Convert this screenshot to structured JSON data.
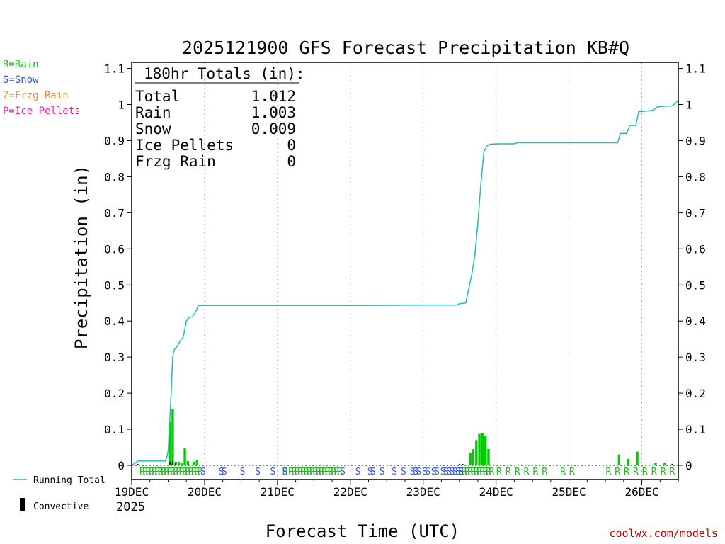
{
  "chart_data": {
    "type": "bar+line",
    "title": "2025121900 GFS Forecast Precipitation KB#Q",
    "xlabel": "Forecast Time (UTC)",
    "ylabel": "Precipitation (in)",
    "ylim": [
      0,
      1.12
    ],
    "xlim_hours": [
      0,
      180
    ],
    "y_ticks": [
      "0",
      "0.1",
      "0.2",
      "0.3",
      "0.4",
      "0.5",
      "0.6",
      "0.7",
      "0.8",
      "0.9",
      "1",
      "1.1"
    ],
    "x_ticks": [
      {
        "label": "19DEC",
        "hour": 0
      },
      {
        "label": "20DEC",
        "hour": 24
      },
      {
        "label": "21DEC",
        "hour": 48
      },
      {
        "label": "22DEC",
        "hour": 72
      },
      {
        "label": "23DEC",
        "hour": 96
      },
      {
        "label": "24DEC",
        "hour": 120
      },
      {
        "label": "25DEC",
        "hour": 144
      },
      {
        "label": "26DEC",
        "hour": 168
      }
    ],
    "start_year": "2025",
    "totals": {
      "header": "180hr Totals (in):",
      "rows": [
        {
          "label": "Total",
          "value": "1.012"
        },
        {
          "label": "Rain",
          "value": "1.003"
        },
        {
          "label": "Snow",
          "value": "0.009"
        },
        {
          "label": "Ice Pellets",
          "value": "0"
        },
        {
          "label": "Frzg Rain",
          "value": "0"
        }
      ]
    },
    "ptype_legend": [
      {
        "text": "R=Rain",
        "color": "#22bb22"
      },
      {
        "text": "S=Snow",
        "color": "#3355dd"
      },
      {
        "text": "Z=Frzg Rain",
        "color": "#ee8833"
      },
      {
        "text": "P=Ice Pellets",
        "color": "#ee2299"
      }
    ],
    "series_legend": [
      {
        "text": "Running Total",
        "color": "#22bbbb"
      },
      {
        "text": "Convective",
        "color": "#000000"
      }
    ],
    "running_total": [
      [
        0,
        0
      ],
      [
        2,
        0.012
      ],
      [
        3,
        0.012
      ],
      [
        5,
        0.012
      ],
      [
        11,
        0.012
      ],
      [
        11.5,
        0.02
      ],
      [
        12,
        0.04
      ],
      [
        12.5,
        0.12
      ],
      [
        13,
        0.2
      ],
      [
        13.5,
        0.3
      ],
      [
        14,
        0.32
      ],
      [
        15,
        0.33
      ],
      [
        16,
        0.345
      ],
      [
        17,
        0.355
      ],
      [
        18,
        0.4
      ],
      [
        19,
        0.41
      ],
      [
        20,
        0.412
      ],
      [
        21,
        0.425
      ],
      [
        22,
        0.443
      ],
      [
        48,
        0.443
      ],
      [
        72,
        0.443
      ],
      [
        96,
        0.444
      ],
      [
        107,
        0.444
      ],
      [
        108,
        0.448
      ],
      [
        110,
        0.45
      ],
      [
        111,
        0.49
      ],
      [
        112,
        0.53
      ],
      [
        113,
        0.58
      ],
      [
        114,
        0.67
      ],
      [
        115,
        0.78
      ],
      [
        116,
        0.87
      ],
      [
        117,
        0.885
      ],
      [
        118,
        0.89
      ],
      [
        121,
        0.891
      ],
      [
        126,
        0.891
      ],
      [
        127,
        0.894
      ],
      [
        160,
        0.894
      ],
      [
        161,
        0.92
      ],
      [
        163,
        0.92
      ],
      [
        164,
        0.942
      ],
      [
        166,
        0.942
      ],
      [
        167,
        0.98
      ],
      [
        171,
        0.983
      ],
      [
        172,
        0.985
      ],
      [
        173,
        0.993
      ],
      [
        175,
        0.995
      ],
      [
        178,
        0.996
      ],
      [
        179,
        1.003
      ],
      [
        180,
        1.012
      ]
    ],
    "precip_bars": [
      {
        "hour": 12.5,
        "value": 0.12
      },
      {
        "hour": 13.5,
        "value": 0.155
      },
      {
        "hour": 14.5,
        "value": 0.01
      },
      {
        "hour": 15.5,
        "value": 0.01
      },
      {
        "hour": 16.5,
        "value": 0.008
      },
      {
        "hour": 17.5,
        "value": 0.047
      },
      {
        "hour": 18.5,
        "value": 0.012
      },
      {
        "hour": 20.5,
        "value": 0.01
      },
      {
        "hour": 21.5,
        "value": 0.015
      },
      {
        "hour": 111.5,
        "value": 0.035
      },
      {
        "hour": 112.5,
        "value": 0.045
      },
      {
        "hour": 113.5,
        "value": 0.07
      },
      {
        "hour": 114.5,
        "value": 0.087
      },
      {
        "hour": 115.5,
        "value": 0.09
      },
      {
        "hour": 116.5,
        "value": 0.082
      },
      {
        "hour": 117.5,
        "value": 0.045
      },
      {
        "hour": 160.5,
        "value": 0.03
      },
      {
        "hour": 163.5,
        "value": 0.018
      },
      {
        "hour": 166.5,
        "value": 0.038
      },
      {
        "hour": 172.5,
        "value": 0.006
      },
      {
        "hour": 175.5,
        "value": 0.006
      }
    ],
    "convective_bars": [
      {
        "hour": 2,
        "value": 0.004
      },
      {
        "hour": 12.5,
        "value": 0.01
      },
      {
        "hour": 13.5,
        "value": 0.01
      },
      {
        "hour": 14.5,
        "value": 0.005
      },
      {
        "hour": 108,
        "value": 0.004
      },
      {
        "hour": 109,
        "value": 0.004
      },
      {
        "hour": 178,
        "value": 0.004
      }
    ],
    "ptype_marks": [
      {
        "type": "R",
        "hours": [
          3.5,
          4.5,
          5.5,
          6.5,
          7.5,
          8.5,
          9.5,
          10.5,
          11.5,
          12.5,
          13.5,
          14.5,
          15.5,
          16.5,
          17.5,
          18.5,
          19.5,
          20.5,
          21.5,
          22.5,
          50.5,
          52.5,
          53.5,
          54.5,
          55.5,
          56.5,
          57.5,
          58.5,
          59.5,
          60.5,
          61.5,
          62.5,
          63.5,
          64.5,
          65.5,
          66.5,
          67.5,
          68.5,
          108.5,
          109.5,
          110.5,
          111.5,
          112.5,
          113.5,
          114.5,
          115.5,
          116.5,
          117.5,
          118.5,
          121,
          124,
          127,
          130,
          133,
          136,
          142,
          145,
          157,
          160,
          163,
          166,
          169,
          172,
          175,
          178
        ]
      },
      {
        "type": "S",
        "hours": [
          23.5,
          29.5,
          30.5,
          36.5,
          41.5,
          46.5,
          50.5,
          69.5,
          74.5,
          78.5,
          79.5,
          82.5,
          86.5,
          89.5,
          92.5,
          93.5,
          94.5,
          96.5,
          97.5,
          99.5,
          100.5,
          102.5,
          103.5,
          104.5,
          105.5,
          106.5,
          107.5,
          108.5
        ]
      }
    ]
  },
  "watermark": "coolwx.com/models"
}
